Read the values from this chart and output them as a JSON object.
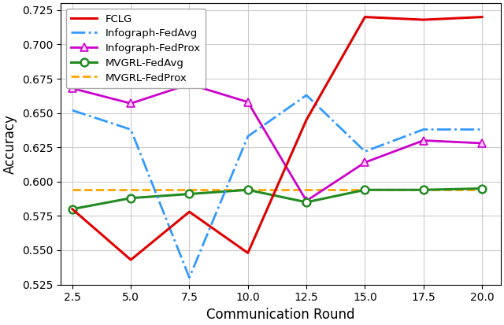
{
  "x": [
    2.5,
    5.0,
    7.5,
    10.0,
    12.5,
    15.0,
    17.5,
    20.0
  ],
  "FCLG": [
    0.58,
    0.543,
    0.578,
    0.548,
    0.645,
    0.72,
    0.718,
    0.72
  ],
  "Infograph_FedAvg": [
    0.652,
    0.638,
    0.53,
    0.633,
    0.663,
    0.622,
    0.638,
    0.638
  ],
  "Infograph_FedProx": [
    0.668,
    0.657,
    0.671,
    0.658,
    0.586,
    0.614,
    0.63,
    0.628
  ],
  "MVGRL_FedAvg": [
    0.58,
    0.588,
    0.591,
    0.594,
    0.585,
    0.594,
    0.594,
    0.595
  ],
  "MVGRL_FedProx": [
    0.594,
    0.594,
    0.594,
    0.594,
    0.594,
    0.594,
    0.594,
    0.594
  ],
  "colors": {
    "FCLG": "#e00000",
    "Infograph_FedAvg": "#3399ff",
    "Infograph_FedProx": "#cc00cc",
    "MVGRL_FedAvg": "#228B22",
    "MVGRL_FedProx": "#FFA500"
  },
  "xlabel": "Communication Round",
  "ylabel": "Accuracy",
  "ylim": [
    0.525,
    0.73
  ],
  "yticks": [
    0.525,
    0.55,
    0.575,
    0.6,
    0.625,
    0.65,
    0.675,
    0.7,
    0.725
  ],
  "xticks": [
    2.5,
    5.0,
    7.5,
    10.0,
    12.5,
    15.0,
    17.5,
    20.0
  ],
  "xtick_labels": [
    "2.5",
    "5.0",
    "7.5",
    "10.0",
    "12.5",
    "15.0",
    "17.5",
    "20.0"
  ],
  "legend_labels": [
    "FCLG",
    "Infograph-FedAvg",
    "Infograph-FedProx",
    "MVGRL-FedAvg",
    "MVGRL-FedProx"
  ],
  "figsize": [
    6.4,
    4.13
  ],
  "dpi": 100
}
